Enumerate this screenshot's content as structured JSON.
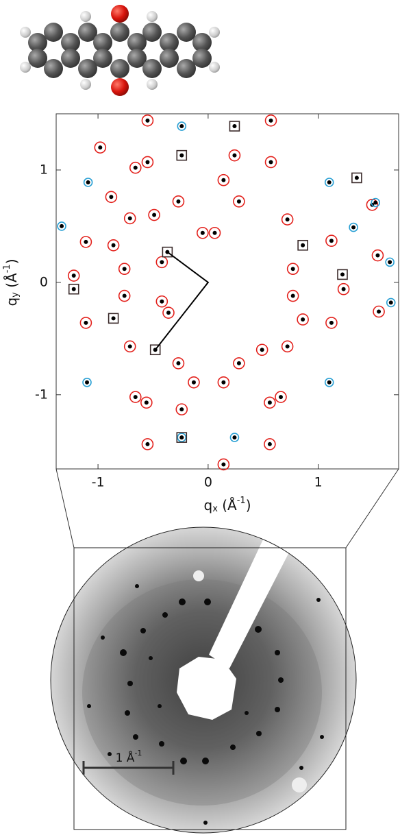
{
  "chart_data": {
    "type": "scatter",
    "xlim": [
      -1.38,
      1.73
    ],
    "ylim": [
      -1.66,
      1.5
    ],
    "xticks": [
      -1,
      0,
      1
    ],
    "yticks": [
      -1,
      0,
      1
    ],
    "xlabel": [
      "q",
      "x",
      " (Å",
      "-1",
      ")"
    ],
    "ylabel": [
      "q",
      "y",
      " (Å",
      "-1",
      ")"
    ],
    "series": [
      {
        "marker": "circle",
        "color": "#e3211c",
        "x": [
          -0.55,
          0.57,
          -0.98,
          0.24,
          -0.55,
          0.57,
          -0.66,
          0.14,
          -0.88,
          -0.27,
          0.28,
          -0.49,
          0.72,
          -0.71,
          -0.05,
          0.06,
          -1.11,
          1.12,
          -0.86,
          1.54,
          -0.42,
          -0.76,
          0.77,
          -1.22,
          -0.42,
          -0.76,
          0.77,
          1.23,
          -1.11,
          1.12,
          -0.71,
          0.72,
          -0.36,
          0.86,
          0.49,
          -0.27,
          0.28,
          -0.66,
          0.66,
          -0.56,
          0.56,
          -0.13,
          0.14,
          -0.24,
          -0.55,
          0.56,
          0.14,
          1.49,
          1.55
        ],
        "y": [
          1.44,
          1.44,
          1.2,
          1.13,
          1.07,
          1.07,
          1.02,
          0.91,
          0.76,
          0.72,
          0.72,
          0.6,
          0.56,
          0.57,
          0.44,
          0.44,
          0.36,
          0.37,
          0.33,
          0.24,
          0.18,
          0.12,
          0.12,
          0.06,
          -0.17,
          -0.12,
          -0.12,
          -0.06,
          -0.36,
          -0.36,
          -0.57,
          -0.57,
          -0.27,
          -0.33,
          -0.6,
          -0.72,
          -0.72,
          -1.02,
          -1.02,
          -1.07,
          -1.07,
          -0.89,
          -0.89,
          -1.13,
          -1.44,
          -1.44,
          -1.62,
          0.69,
          -0.26
        ]
      },
      {
        "marker": "circle-small",
        "color": "#2aa0d4",
        "x": [
          -0.24,
          -1.09,
          1.1,
          -1.33,
          1.52,
          1.32,
          1.65,
          1.66,
          -1.1,
          1.1,
          0.24,
          -0.24
        ],
        "y": [
          1.39,
          0.89,
          0.89,
          0.5,
          0.71,
          0.49,
          0.18,
          -0.18,
          -0.89,
          -0.89,
          -1.38,
          -1.38
        ]
      },
      {
        "marker": "square",
        "color": "#3a2a2a",
        "x": [
          0.24,
          -0.24,
          1.35,
          -0.37,
          0.86,
          1.22,
          -1.22,
          -0.86,
          -0.48,
          -0.24
        ],
        "y": [
          1.39,
          1.13,
          0.93,
          0.27,
          0.33,
          0.07,
          -0.06,
          -0.32,
          -0.6,
          -1.38
        ]
      },
      {
        "marker": "line",
        "color": "#000000",
        "x": [
          -0.37,
          0,
          -0.48
        ],
        "y": [
          0.27,
          0,
          -0.6
        ]
      }
    ]
  },
  "image": {
    "scalebar_label": [
      "1 Å",
      "-1"
    ]
  }
}
